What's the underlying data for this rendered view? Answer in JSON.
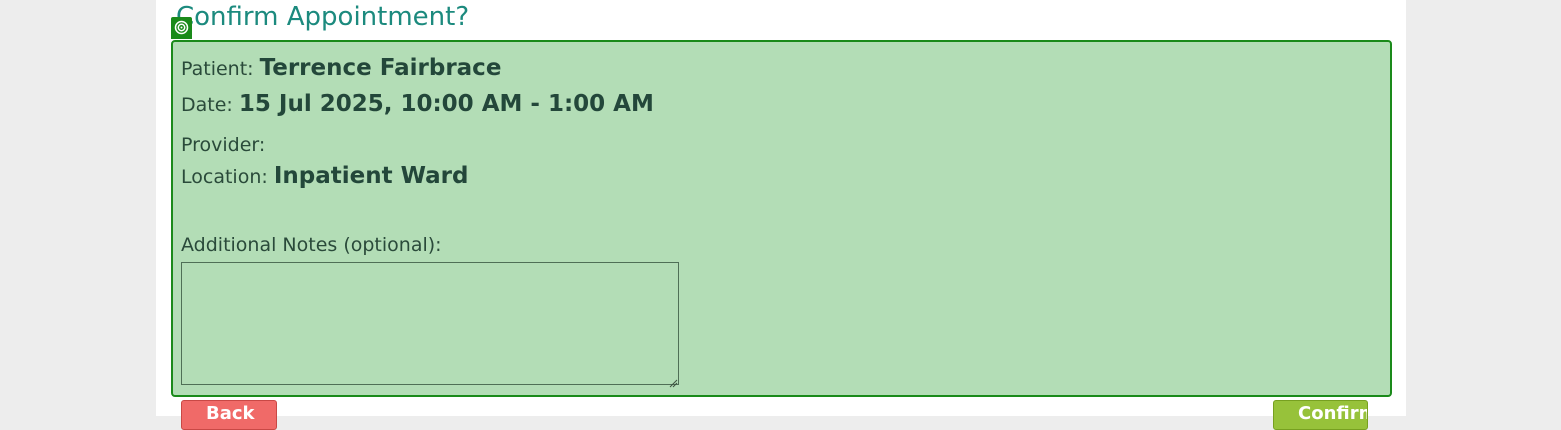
{
  "dialog": {
    "title": "Confirm Appointment?",
    "badge_icon": "target-icon"
  },
  "details": {
    "patient_label": "Patient:",
    "patient_value": "Terrence Fairbrace",
    "date_label": "Date:",
    "date_value": "15 Jul 2025, 10:00 AM - 1:00 AM",
    "provider_label": "Provider:",
    "provider_value": "",
    "location_label": "Location:",
    "location_value": "Inpatient Ward"
  },
  "notes": {
    "label": "Additional Notes (optional):",
    "value": "",
    "placeholder": ""
  },
  "buttons": {
    "back_label": "Back",
    "confirm_label": "Confirm"
  },
  "colors": {
    "title": "#1c8a7e",
    "panel_bg": "#b3ddb6",
    "panel_border": "#1a8a1a",
    "back_button": "#f06a68",
    "confirm_button": "#97c23a"
  }
}
